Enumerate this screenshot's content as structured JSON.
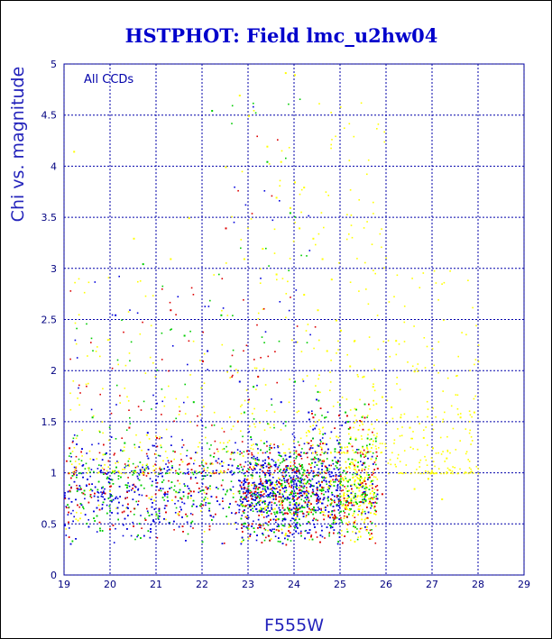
{
  "chart_data": {
    "type": "scatter",
    "title": "HSTPHOT: Field lmc_u2hw04",
    "xlabel": "F555W",
    "ylabel": "Chi vs. magnitude",
    "annotation": "All CCDs",
    "xlim": [
      19,
      29
    ],
    "ylim": [
      0,
      5
    ],
    "xticks": [
      "19",
      "20",
      "21",
      "22",
      "23",
      "24",
      "25",
      "26",
      "27",
      "28",
      "29"
    ],
    "yticks": [
      "0",
      "0.5",
      "1",
      "1.5",
      "2",
      "2.5",
      "3",
      "3.5",
      "4",
      "4.5",
      "5"
    ],
    "grid": true,
    "series_colors": {
      "ccd1": "#ffff00",
      "ccd2": "#00cc00",
      "ccd3": "#dd0000",
      "ccd4": "#0000dd"
    },
    "series": [
      {
        "color": "#ffff00",
        "points": [
          [
            24.0,
            4.9
          ],
          [
            23.8,
            4.92
          ],
          [
            22.8,
            4.7
          ],
          [
            23.0,
            4.5
          ],
          [
            23.4,
            4.2
          ],
          [
            23.7,
            4.05
          ],
          [
            24.0,
            3.85
          ],
          [
            24.2,
            3.8
          ],
          [
            23.9,
            3.6
          ],
          [
            23.6,
            3.7
          ],
          [
            24.1,
            3.4
          ],
          [
            24.4,
            3.3
          ],
          [
            23.3,
            3.2
          ],
          [
            22.9,
            3.1
          ],
          [
            24.6,
            3.1
          ],
          [
            24.8,
            2.9
          ],
          [
            23.6,
            2.95
          ],
          [
            24.2,
            2.75
          ],
          [
            24.5,
            2.6
          ],
          [
            24.9,
            2.5
          ],
          [
            25.0,
            2.4
          ],
          [
            25.3,
            2.3
          ],
          [
            24.7,
            2.2
          ],
          [
            25.2,
            2.05
          ],
          [
            25.5,
            1.95
          ],
          [
            25.7,
            1.85
          ],
          [
            25.9,
            1.75
          ],
          [
            26.1,
            1.65
          ],
          [
            26.3,
            1.55
          ],
          [
            26.5,
            1.45
          ],
          [
            26.8,
            1.35
          ],
          [
            27.0,
            1.25
          ],
          [
            27.3,
            1.15
          ],
          [
            27.6,
            1.55
          ],
          [
            27.9,
            1.6
          ],
          [
            27.2,
            0.75
          ],
          [
            26.6,
            0.85
          ],
          [
            26.9,
            0.95
          ],
          [
            21.7,
            3.5
          ],
          [
            21.3,
            3.1
          ],
          [
            19.2,
            4.15
          ],
          [
            22.5,
            4.0
          ],
          [
            20.5,
            3.3
          ],
          [
            26.2,
            2.3
          ],
          [
            26.6,
            2.0
          ]
        ]
      },
      {
        "color": "#00cc00",
        "points": [
          [
            22.2,
            4.55
          ],
          [
            23.4,
            4.05
          ],
          [
            23.9,
            3.55
          ],
          [
            20.7,
            3.05
          ],
          [
            22.4,
            2.55
          ],
          [
            21.6,
            2.35
          ],
          [
            22.6,
            2.05
          ],
          [
            23.1,
            1.85
          ],
          [
            19.6,
            1.55
          ],
          [
            20.3,
            1.3
          ],
          [
            21.8,
            1.7
          ],
          [
            22.9,
            1.6
          ],
          [
            24.0,
            1.9
          ],
          [
            24.5,
            1.8
          ],
          [
            25.1,
            1.6
          ]
        ]
      },
      {
        "color": "#dd0000",
        "points": [
          [
            22.5,
            3.4
          ],
          [
            21.3,
            2.6
          ],
          [
            22.0,
            2.1
          ],
          [
            23.2,
            1.95
          ],
          [
            20.4,
            1.45
          ],
          [
            21.0,
            1.35
          ],
          [
            19.1,
            1.25
          ],
          [
            24.4,
            1.55
          ],
          [
            25.2,
            1.45
          ],
          [
            25.8,
            1.05
          ],
          [
            25.9,
            0.8
          ]
        ]
      },
      {
        "color": "#0000dd",
        "points": [
          [
            20.1,
            2.55
          ],
          [
            22.1,
            2.2
          ],
          [
            22.8,
            1.9
          ],
          [
            20.8,
            1.4
          ],
          [
            19.9,
            1.2
          ],
          [
            24.3,
            1.6
          ],
          [
            23.7,
            1.7
          ],
          [
            25.1,
            1.5
          ]
        ]
      }
    ],
    "dense_region": {
      "x": [
        19,
        25.8
      ],
      "y_center": 0.8,
      "y_spread": [
        0.3,
        1.5
      ]
    }
  }
}
